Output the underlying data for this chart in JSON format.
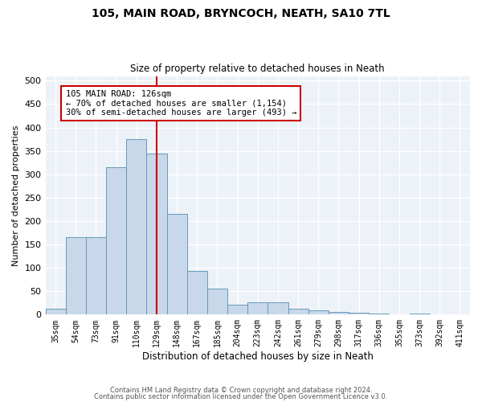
{
  "title1": "105, MAIN ROAD, BRYNCOCH, NEATH, SA10 7TL",
  "title2": "Size of property relative to detached houses in Neath",
  "xlabel": "Distribution of detached houses by size in Neath",
  "ylabel": "Number of detached properties",
  "bar_color": "#c8d8ea",
  "bar_edge_color": "#6699bb",
  "categories": [
    "35sqm",
    "54sqm",
    "73sqm",
    "91sqm",
    "110sqm",
    "129sqm",
    "148sqm",
    "167sqm",
    "185sqm",
    "204sqm",
    "223sqm",
    "242sqm",
    "261sqm",
    "279sqm",
    "298sqm",
    "317sqm",
    "336sqm",
    "355sqm",
    "373sqm",
    "392sqm",
    "411sqm"
  ],
  "values": [
    12,
    165,
    165,
    315,
    375,
    345,
    215,
    93,
    55,
    22,
    27,
    27,
    12,
    9,
    6,
    4,
    3,
    1,
    3,
    1,
    1
  ],
  "vline_color": "#cc0000",
  "annotation_text": "105 MAIN ROAD: 126sqm\n← 70% of detached houses are smaller (1,154)\n30% of semi-detached houses are larger (493) →",
  "ylim": [
    0,
    510
  ],
  "yticks": [
    0,
    50,
    100,
    150,
    200,
    250,
    300,
    350,
    400,
    450,
    500
  ],
  "background_color": "#edf2f8",
  "footer1": "Contains HM Land Registry data © Crown copyright and database right 2024.",
  "footer2": "Contains public sector information licensed under the Open Government Licence v3.0."
}
